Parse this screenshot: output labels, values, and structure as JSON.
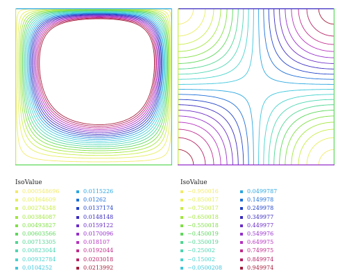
{
  "chart_data": [
    {
      "type": "contour",
      "xlim": [
        0,
        1
      ],
      "ylim": [
        0,
        1
      ],
      "legend": {
        "title": "IsoValue",
        "entries": [
          {
            "value": "0.000548696",
            "color": "#f2ea6a"
          },
          {
            "value": "0.00164609",
            "color": "#e6ef5a"
          },
          {
            "value": "0.00274348",
            "color": "#c8ed46"
          },
          {
            "value": "0.00384087",
            "color": "#a0e73e"
          },
          {
            "value": "0.00493827",
            "color": "#7ee043"
          },
          {
            "value": "0.00603566",
            "color": "#5cd85a"
          },
          {
            "value": "0.00713305",
            "color": "#4fd691"
          },
          {
            "value": "0.00823044",
            "color": "#4dd6b2"
          },
          {
            "value": "0.00932784",
            "color": "#47d3cc"
          },
          {
            "value": "0.0104252",
            "color": "#3ec6dc"
          },
          {
            "value": "0.0115226",
            "color": "#2aa6e0"
          },
          {
            "value": "0.01262",
            "color": "#1d6fd8"
          },
          {
            "value": "0.0137174",
            "color": "#2040c8"
          },
          {
            "value": "0.0148148",
            "color": "#3a2cbf"
          },
          {
            "value": "0.0159122",
            "color": "#6a2cc6"
          },
          {
            "value": "0.0170096",
            "color": "#952ecb"
          },
          {
            "value": "0.018107",
            "color": "#b630bf"
          },
          {
            "value": "0.0192044",
            "color": "#c02a8c"
          },
          {
            "value": "0.0203018",
            "color": "#b52264"
          },
          {
            "value": "0.0213992",
            "color": "#a51c3a"
          }
        ]
      }
    },
    {
      "type": "contour",
      "xlim": [
        0,
        1
      ],
      "ylim": [
        0,
        1
      ],
      "legend": {
        "title": "IsoValue",
        "entries": [
          {
            "value": "−0.950016",
            "color": "#f2ea6a"
          },
          {
            "value": "−0.850017",
            "color": "#e6ef5a"
          },
          {
            "value": "−0.750017",
            "color": "#c8ed46"
          },
          {
            "value": "−0.650018",
            "color": "#a0e73e"
          },
          {
            "value": "−0.550018",
            "color": "#7ee043"
          },
          {
            "value": "−0.450019",
            "color": "#5cd85a"
          },
          {
            "value": "−0.350019",
            "color": "#4fd691"
          },
          {
            "value": "−0.25002",
            "color": "#4dd6b2"
          },
          {
            "value": "−0.15002",
            "color": "#47d3cc"
          },
          {
            "value": "−0.0500208",
            "color": "#3ec6dc"
          },
          {
            "value": "0.0499787",
            "color": "#2aa6e0"
          },
          {
            "value": "0.149978",
            "color": "#1d6fd8"
          },
          {
            "value": "0.249978",
            "color": "#2040c8"
          },
          {
            "value": "0.349977",
            "color": "#3a2cbf"
          },
          {
            "value": "0.449977",
            "color": "#6a2cc6"
          },
          {
            "value": "0.549976",
            "color": "#952ecb"
          },
          {
            "value": "0.649975",
            "color": "#b630bf"
          },
          {
            "value": "0.749975",
            "color": "#c02a8c"
          },
          {
            "value": "0.849974",
            "color": "#b52264"
          },
          {
            "value": "0.949974",
            "color": "#a51c3a"
          }
        ]
      }
    }
  ]
}
